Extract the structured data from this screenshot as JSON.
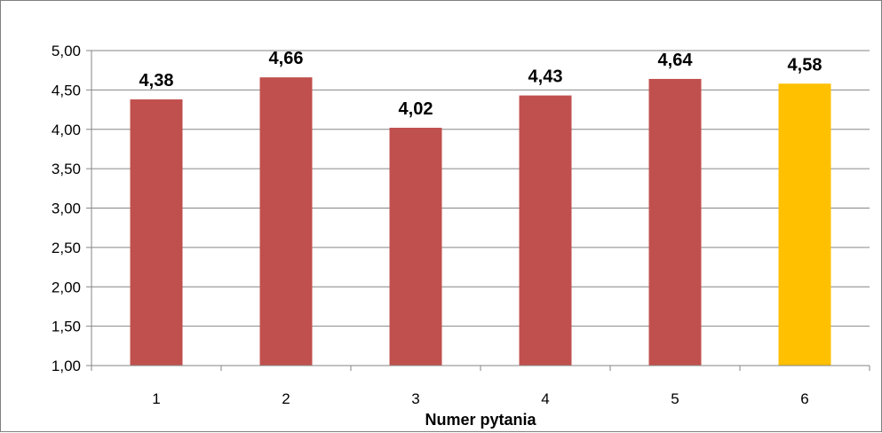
{
  "chart_data": {
    "type": "bar",
    "categories": [
      "1",
      "2",
      "3",
      "4",
      "5",
      "6"
    ],
    "values": [
      4.38,
      4.66,
      4.02,
      4.43,
      4.64,
      4.58
    ],
    "data_labels": [
      "4,38",
      "4,66",
      "4,02",
      "4,43",
      "4,64",
      "4,58"
    ],
    "title": "",
    "xlabel": "Numer pytania",
    "ylabel": "",
    "ylim": [
      1.0,
      5.0
    ],
    "yticks": [
      1.0,
      1.5,
      2.0,
      2.5,
      3.0,
      3.5,
      4.0,
      4.5,
      5.0
    ],
    "ytick_labels": [
      "1,00",
      "1,50",
      "2,00",
      "2,50",
      "3,00",
      "3,50",
      "4,00",
      "4,50",
      "5,00"
    ],
    "grid": true,
    "legend": "none",
    "colors": {
      "bar_default": "#C0504D",
      "bar_highlight": "#FFC000",
      "gridline": "#868686",
      "axis": "#868686"
    },
    "highlight_index": 5
  }
}
